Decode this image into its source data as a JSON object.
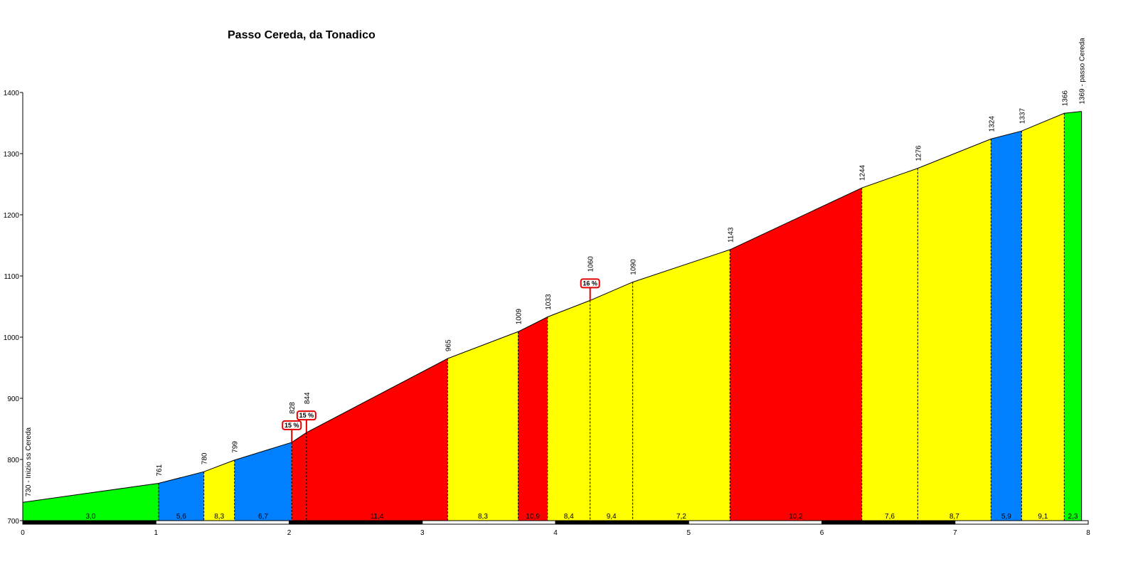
{
  "chart_data": {
    "type": "area",
    "title": "Passo Cereda, da Tonadico",
    "xlim": [
      0,
      8
    ],
    "ylim": [
      700,
      1400
    ],
    "x_ticks": [
      "0",
      "1",
      "2",
      "3",
      "4",
      "5",
      "6",
      "7",
      "8"
    ],
    "y_ticks": [
      "700",
      "800",
      "900",
      "1000",
      "1100",
      "1200",
      "1300",
      "1400"
    ],
    "points": [
      {
        "x": 0.0,
        "y": 730,
        "label": "730 - Inizio ss Cereda"
      },
      {
        "x": 1.02,
        "y": 761,
        "label": "761"
      },
      {
        "x": 1.36,
        "y": 780,
        "label": "780"
      },
      {
        "x": 1.59,
        "y": 799,
        "label": "799"
      },
      {
        "x": 2.02,
        "y": 828,
        "label": "828"
      },
      {
        "x": 2.13,
        "y": 844,
        "label": "844"
      },
      {
        "x": 3.19,
        "y": 965,
        "label": "965"
      },
      {
        "x": 3.72,
        "y": 1009,
        "label": "1009"
      },
      {
        "x": 3.94,
        "y": 1033,
        "label": "1033"
      },
      {
        "x": 4.26,
        "y": 1060,
        "label": "1060"
      },
      {
        "x": 4.58,
        "y": 1090,
        "label": "1090"
      },
      {
        "x": 5.31,
        "y": 1143,
        "label": "1143"
      },
      {
        "x": 6.3,
        "y": 1244,
        "label": "1244"
      },
      {
        "x": 6.72,
        "y": 1276,
        "label": "1276"
      },
      {
        "x": 7.27,
        "y": 1324,
        "label": "1324"
      },
      {
        "x": 7.5,
        "y": 1337,
        "label": "1337"
      },
      {
        "x": 7.82,
        "y": 1366,
        "label": "1366"
      },
      {
        "x": 7.95,
        "y": 1369,
        "label": "1369 - passo Cereda"
      }
    ],
    "segments": [
      {
        "gradient": "3,0",
        "color": "#00ff00"
      },
      {
        "gradient": "5,6",
        "color": "#0080ff"
      },
      {
        "gradient": "8,3",
        "color": "#ffff00"
      },
      {
        "gradient": "6,7",
        "color": "#0080ff"
      },
      {
        "gradient": "",
        "color": "#ff0000"
      },
      {
        "gradient": "11,4",
        "color": "#ff0000"
      },
      {
        "gradient": "8,3",
        "color": "#ffff00"
      },
      {
        "gradient": "10,9",
        "color": "#ff0000"
      },
      {
        "gradient": "8,4",
        "color": "#ffff00"
      },
      {
        "gradient": "9,4",
        "color": "#ffff00"
      },
      {
        "gradient": "7,2",
        "color": "#ffff00"
      },
      {
        "gradient": "10,2",
        "color": "#ff0000"
      },
      {
        "gradient": "7,6",
        "color": "#ffff00"
      },
      {
        "gradient": "8,7",
        "color": "#ffff00"
      },
      {
        "gradient": "5,9",
        "color": "#0080ff"
      },
      {
        "gradient": "9,1",
        "color": "#ffff00"
      },
      {
        "gradient": "2,3",
        "color": "#00ff00"
      }
    ],
    "max_gradients": [
      {
        "x": 2.02,
        "y": 828,
        "label": "15 %"
      },
      {
        "x": 2.13,
        "y": 844,
        "label": "15 %"
      },
      {
        "x": 4.26,
        "y": 1060,
        "label": "16 %"
      }
    ]
  }
}
